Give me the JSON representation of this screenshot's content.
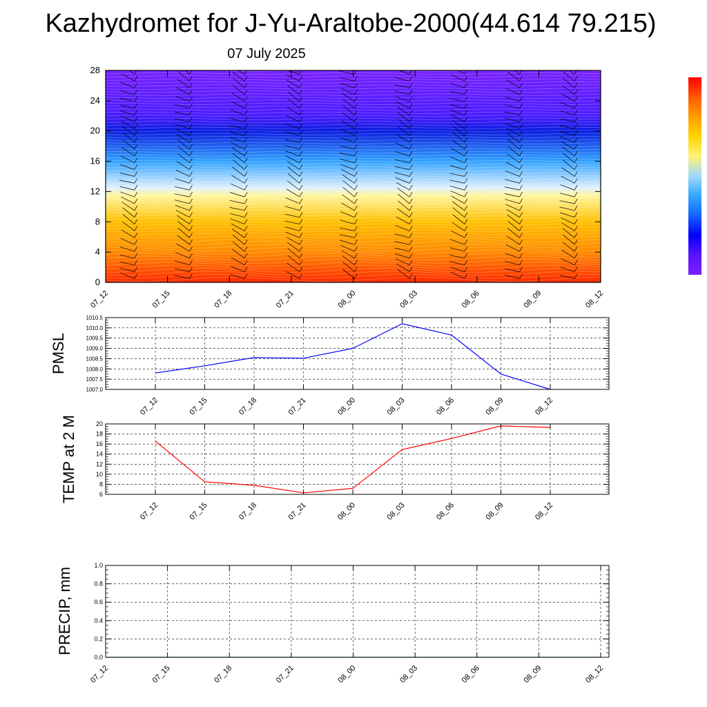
{
  "header": {
    "title": "Kazhydromet for J-Yu-Araltobe-2000(44.614 79.215)",
    "subtitle": "07 July 2025"
  },
  "colors": {
    "pmsl_line": "#0000ff",
    "temp_line": "#ff0000",
    "precip_line": "#008000",
    "grid": "#000000",
    "colorbar": [
      "#ff0000",
      "#ff5a00",
      "#ff9f00",
      "#ffd400",
      "#fff37a",
      "#9fd8ff",
      "#33a8ff",
      "#1464ff",
      "#0000ff",
      "#5a12ff",
      "#7a1fff"
    ]
  },
  "chart_data": [
    {
      "type": "heatmap",
      "x_labels": [
        "07_12",
        "07_15",
        "07_18",
        "07_21",
        "08_00",
        "08_03",
        "08_06",
        "08_09",
        "08_12"
      ],
      "y_ticks": [
        0,
        4,
        8,
        12,
        16,
        20,
        24,
        28
      ],
      "ylim": [
        0,
        28
      ],
      "xlabel": "",
      "ylabel": "",
      "wind_barbs": true,
      "colorbar_stops": [
        {
          "level": 0,
          "color": "#ff2a00"
        },
        {
          "level": 4,
          "color": "#ff8a00"
        },
        {
          "level": 8,
          "color": "#ffc000"
        },
        {
          "level": 11.5,
          "color": "#fff6a0"
        },
        {
          "level": 12.5,
          "color": "#dff1ff"
        },
        {
          "level": 16,
          "color": "#33a3ff"
        },
        {
          "level": 20,
          "color": "#0b1fe0"
        },
        {
          "level": 22,
          "color": "#4a1cff"
        },
        {
          "level": 28,
          "color": "#7a22ff"
        }
      ]
    },
    {
      "type": "line",
      "ylabel": "PMSL",
      "ylim": [
        1007.0,
        1010.5
      ],
      "y_ticks": [
        "1007.0",
        "1007.5",
        "1008.0",
        "1008.5",
        "1009.0",
        "1009.5",
        "1010.0",
        "1010.5"
      ],
      "categories": [
        "07_12",
        "07_15",
        "07_18",
        "07_21",
        "08_00",
        "08_03",
        "08_06",
        "08_09",
        "08_12"
      ],
      "values": [
        1007.8,
        1008.15,
        1008.55,
        1008.52,
        1009.0,
        1010.2,
        1009.65,
        1007.75,
        1007.0
      ],
      "grid": true
    },
    {
      "type": "line",
      "ylabel": "TEMP at 2 M",
      "ylim": [
        6,
        20
      ],
      "y_ticks": [
        "6",
        "8",
        "10",
        "12",
        "14",
        "16",
        "18",
        "20"
      ],
      "categories": [
        "07_12",
        "07_15",
        "07_18",
        "07_21",
        "08_00",
        "08_03",
        "08_06",
        "08_09",
        "08_12"
      ],
      "values": [
        16.6,
        8.5,
        7.8,
        6.3,
        7.2,
        14.9,
        17.1,
        19.6,
        19.3
      ],
      "grid": true
    },
    {
      "type": "line",
      "ylabel": "PRECIP, mm",
      "ylim": [
        0.0,
        1.0
      ],
      "y_ticks": [
        "0.0",
        "0.2",
        "0.4",
        "0.6",
        "0.8",
        "1.0"
      ],
      "categories": [
        "07_12",
        "07_15",
        "07_18",
        "07_21",
        "08_00",
        "08_03",
        "08_06",
        "08_09",
        "08_12"
      ],
      "values": [
        0,
        0,
        0,
        0,
        0,
        0,
        0,
        0,
        0
      ],
      "grid": true
    }
  ]
}
